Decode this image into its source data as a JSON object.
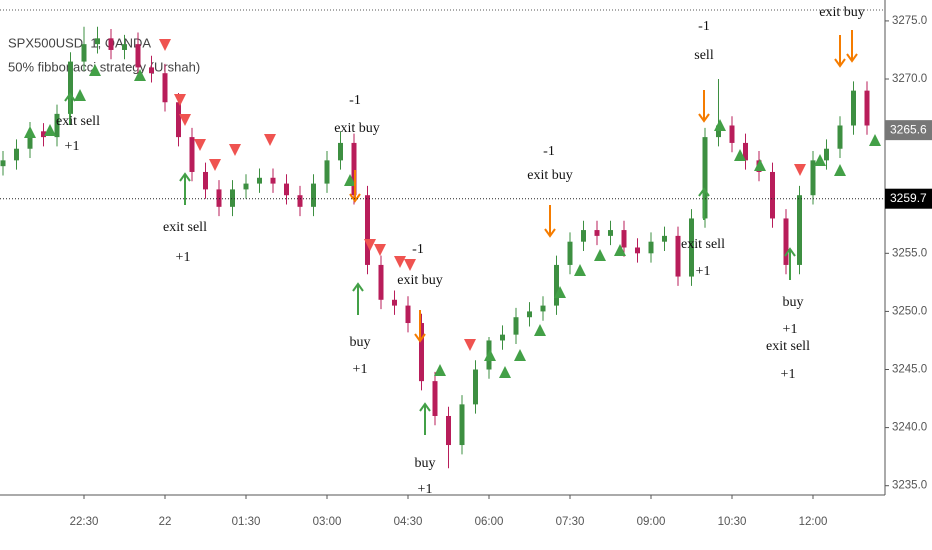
{
  "chart_data": {
    "type": "candlestick",
    "title": "SPX500USD, 1, OANDA",
    "subtitle": "50% fibbonacci strategy (Urshah)",
    "categories": [
      null,
      null,
      null,
      null,
      null,
      null,
      "22:30",
      null,
      null,
      null,
      null,
      null,
      "22",
      null,
      null,
      null,
      null,
      null,
      "01:30",
      null,
      null,
      null,
      null,
      null,
      "03:00",
      null,
      null,
      null,
      null,
      null,
      "04:30",
      null,
      null,
      null,
      null,
      null,
      "06:00",
      null,
      null,
      null,
      null,
      null,
      "07:30",
      null,
      null,
      null,
      null,
      null,
      "09:00",
      null,
      null,
      null,
      null,
      null,
      "10:30",
      null,
      null,
      null,
      null,
      null,
      "12:00",
      null,
      null,
      null,
      null
    ],
    "open": [
      3262.5,
      3263,
      3264,
      3265.5,
      3265,
      3267,
      3271.5,
      3273,
      3273.5,
      3272.5,
      3273,
      3271,
      3270.5,
      3268,
      3265,
      3262,
      3260.5,
      3259,
      3260.5,
      3261,
      3261.5,
      3261,
      3260,
      3259,
      3261,
      3263,
      3264.5,
      3260,
      3254,
      3251,
      3250.5,
      3249,
      3244,
      3241,
      3238.5,
      3242,
      3245,
      3247.5,
      3248,
      3249.5,
      3250,
      3250.5,
      3254,
      3256,
      3257,
      3256.5,
      3257,
      3255.5,
      3255,
      3256,
      3256.5,
      3253,
      3258,
      3265,
      3266,
      3264.5,
      3263,
      3262,
      3258,
      3254,
      3260,
      3263,
      3264,
      3266,
      3269
    ],
    "high": [
      3263.8,
      3264.8,
      3266.3,
      3266.2,
      3267.8,
      3272.3,
      3274.5,
      3274.5,
      3274.3,
      3273.8,
      3274,
      3272,
      3271.3,
      3268.8,
      3265.8,
      3262.8,
      3261.3,
      3261.3,
      3261.8,
      3262.3,
      3262.3,
      3261.8,
      3260.8,
      3261.8,
      3263.8,
      3265.5,
      3265.3,
      3260.8,
      3254.8,
      3251.8,
      3251.3,
      3249.8,
      3244.8,
      3241.8,
      3242.8,
      3245.8,
      3247.8,
      3248.8,
      3250.3,
      3250.8,
      3251.3,
      3254.8,
      3256.8,
      3257.8,
      3257.8,
      3257.8,
      3257.8,
      3256.3,
      3256.8,
      3257.3,
      3257.3,
      3258.8,
      3265.8,
      3270,
      3266.8,
      3265.3,
      3263.8,
      3262.8,
      3258.8,
      3260.8,
      3263.8,
      3264.8,
      3266.8,
      3269.8,
      3269.8
    ],
    "low": [
      3261.7,
      3262.2,
      3263.2,
      3264.2,
      3264.2,
      3266.2,
      3270.7,
      3272.2,
      3271.7,
      3271.7,
      3270.2,
      3269.7,
      3267.2,
      3264.2,
      3261.2,
      3259.7,
      3258.2,
      3258.2,
      3259.7,
      3260.2,
      3260.2,
      3259.2,
      3258.2,
      3258.2,
      3260.2,
      3262.2,
      3259.2,
      3253.2,
      3250.2,
      3249.7,
      3248.2,
      3243.2,
      3240.2,
      3236.5,
      3237.7,
      3241.2,
      3244.2,
      3246.7,
      3247.2,
      3248.7,
      3249.2,
      3249.7,
      3253.2,
      3255.2,
      3255.7,
      3255.7,
      3254.7,
      3254.2,
      3254.2,
      3255.2,
      3252.2,
      3252.2,
      3257.2,
      3264.2,
      3263.7,
      3262.2,
      3261.2,
      3257.2,
      3253.2,
      3253.2,
      3259.2,
      3262.2,
      3263.2,
      3265.2,
      3265.2
    ],
    "close": [
      3263,
      3264,
      3265.5,
      3265,
      3267,
      3271.5,
      3273,
      3273.5,
      3272.5,
      3273,
      3271,
      3270.5,
      3268,
      3265,
      3262,
      3260.5,
      3259,
      3260.5,
      3261,
      3261.5,
      3261,
      3260,
      3259,
      3261,
      3263,
      3264.5,
      3260,
      3254,
      3251,
      3250.5,
      3249,
      3244,
      3241,
      3238.5,
      3242,
      3245,
      3247.5,
      3248,
      3249.5,
      3250,
      3250.5,
      3254,
      3256,
      3257,
      3256.5,
      3257,
      3255.5,
      3255,
      3256,
      3256.5,
      3253,
      3258,
      3265,
      3266,
      3264.5,
      3263,
      3262,
      3258,
      3254,
      3260,
      3263,
      3264,
      3266,
      3269,
      3266
    ],
    "up_color": "#3d8f41",
    "down_color": "#b81d5a",
    "ylim": [
      3234.2,
      3276.8
    ],
    "yticks": [
      {
        "value": 3235,
        "label": "3235.0"
      },
      {
        "value": 3240,
        "label": "3240.0"
      },
      {
        "value": 3245,
        "label": "3245.0"
      },
      {
        "value": 3250,
        "label": "3250.0"
      },
      {
        "value": 3255,
        "label": "3255.0"
      },
      {
        "value": 3260,
        "label": "3260.0"
      },
      {
        "value": 3265,
        "label": "3265.0"
      },
      {
        "value": 3270,
        "label": "3270.0"
      },
      {
        "value": 3275,
        "label": "3275.0"
      }
    ],
    "price_markers": [
      {
        "value": 3265.6,
        "label": "3265.6",
        "color": "#777777"
      },
      {
        "value": 3259.7,
        "label": "3259.7",
        "color": "#000000"
      }
    ],
    "signals": [
      "exit sell",
      "+1",
      "exit sell",
      "+1",
      "-1",
      "exit buy",
      "-1",
      "exit buy",
      "buy",
      "+1",
      "buy",
      "+1",
      "-1",
      "exit buy",
      "exit sell",
      "+1",
      "-1",
      "sell",
      "buy",
      "+1",
      "exit sell",
      "+1",
      "exit buy"
    ]
  }
}
